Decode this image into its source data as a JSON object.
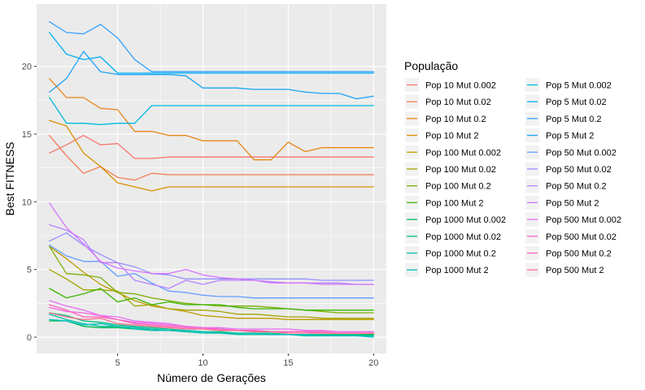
{
  "chart_data": {
    "type": "line",
    "title": "",
    "xlabel": "Número de Gerações",
    "ylabel": "Best FITNESS",
    "xlim": [
      0.25,
      20.75
    ],
    "ylim": [
      -1.2,
      24.6
    ],
    "x_ticks": [
      5,
      10,
      15,
      20
    ],
    "y_ticks": [
      0,
      5,
      10,
      15,
      20
    ],
    "grid": true,
    "legend_title": "População",
    "legend_position": "right",
    "x": [
      1,
      2,
      3,
      4,
      5,
      6,
      7,
      8,
      9,
      10,
      11,
      12,
      13,
      14,
      15,
      16,
      17,
      18,
      19,
      20
    ],
    "series": [
      {
        "name": "Pop 10 Mut 0.002",
        "color": "#F8766D",
        "values": [
          13.6,
          14.2,
          14.9,
          14.2,
          14.3,
          13.2,
          13.2,
          13.3,
          13.3,
          13.3,
          13.3,
          13.3,
          13.3,
          13.3,
          13.3,
          13.3,
          13.3,
          13.3,
          13.3,
          13.3
        ]
      },
      {
        "name": "Pop 10 Mut 0.02",
        "color": "#F27D52",
        "values": [
          14.9,
          13.4,
          12.1,
          12.6,
          11.8,
          11.6,
          12.1,
          12.0,
          12.0,
          12.0,
          12.0,
          12.0,
          12.0,
          12.0,
          12.0,
          12.0,
          12.0,
          12.0,
          12.0,
          12.0
        ]
      },
      {
        "name": "Pop 10 Mut 0.2",
        "color": "#E7861B",
        "values": [
          19.1,
          17.7,
          17.7,
          16.9,
          16.8,
          15.2,
          15.2,
          14.9,
          14.9,
          14.5,
          14.5,
          14.5,
          13.1,
          13.1,
          14.4,
          13.7,
          14.0,
          14.0,
          14.0,
          14.0
        ]
      },
      {
        "name": "Pop 10 Mut 2",
        "color": "#D89000",
        "values": [
          16.0,
          15.6,
          13.6,
          12.6,
          11.4,
          11.1,
          10.8,
          11.1,
          11.1,
          11.1,
          11.1,
          11.1,
          11.1,
          11.1,
          11.1,
          11.1,
          11.1,
          11.1,
          11.1,
          11.1
        ]
      },
      {
        "name": "Pop 100 Mut 0.002",
        "color": "#C09B00",
        "values": [
          6.7,
          5.8,
          4.8,
          3.9,
          3.3,
          2.7,
          2.3,
          2.1,
          1.9,
          1.6,
          1.5,
          1.4,
          1.4,
          1.4,
          1.3,
          1.3,
          1.3,
          1.3,
          1.3,
          1.3
        ]
      },
      {
        "name": "Pop 100 Mut 0.02",
        "color": "#A3A500",
        "values": [
          5.0,
          4.3,
          3.5,
          3.5,
          3.4,
          2.3,
          2.4,
          2.1,
          2.0,
          2.0,
          1.9,
          1.7,
          1.7,
          1.6,
          1.5,
          1.5,
          1.4,
          1.4,
          1.4,
          1.4
        ]
      },
      {
        "name": "Pop 100 Mut 0.2",
        "color": "#7CAE00",
        "values": [
          6.7,
          4.7,
          4.6,
          4.4,
          3.3,
          3.2,
          2.9,
          2.7,
          2.5,
          2.4,
          2.3,
          2.3,
          2.3,
          2.2,
          2.1,
          2.0,
          1.9,
          1.8,
          1.8,
          1.8
        ]
      },
      {
        "name": "Pop 100 Mut 2",
        "color": "#39B600",
        "values": [
          3.6,
          2.9,
          3.2,
          3.6,
          2.6,
          2.9,
          2.4,
          2.6,
          2.4,
          2.4,
          2.4,
          2.2,
          2.1,
          2.1,
          2.1,
          2.0,
          2.0,
          2.0,
          2.0,
          2.0
        ]
      },
      {
        "name": "Pop 1000 Mut 0.002",
        "color": "#00BB4E",
        "values": [
          1.2,
          1.2,
          0.8,
          0.7,
          0.7,
          0.6,
          0.6,
          0.5,
          0.5,
          0.4,
          0.3,
          0.3,
          0.3,
          0.2,
          0.2,
          0.2,
          0.2,
          0.2,
          0.2,
          0.2
        ]
      },
      {
        "name": "Pop 1000 Mut 0.02",
        "color": "#00BF7D",
        "values": [
          1.8,
          1.6,
          1.2,
          1.1,
          0.9,
          0.8,
          0.7,
          0.6,
          0.5,
          0.4,
          0.4,
          0.3,
          0.3,
          0.3,
          0.2,
          0.2,
          0.2,
          0.2,
          0.2,
          0.1
        ]
      },
      {
        "name": "Pop 1000 Mut 0.2",
        "color": "#00C1A3",
        "values": [
          1.7,
          1.3,
          1.0,
          0.8,
          0.8,
          0.6,
          0.5,
          0.5,
          0.4,
          0.3,
          0.3,
          0.2,
          0.2,
          0.2,
          0.2,
          0.1,
          0.1,
          0.1,
          0.1,
          0.1
        ]
      },
      {
        "name": "Pop 1000 Mut 2",
        "color": "#00BFC4",
        "values": [
          1.3,
          1.2,
          0.9,
          1.0,
          0.8,
          0.7,
          0.6,
          0.5,
          0.5,
          0.4,
          0.3,
          0.3,
          0.3,
          0.2,
          0.2,
          0.2,
          0.1,
          0.1,
          0.1,
          0.0
        ]
      },
      {
        "name": "Pop 5 Mut 0.002",
        "color": "#00BAE0",
        "values": [
          17.7,
          15.8,
          15.8,
          15.7,
          15.8,
          15.8,
          17.1,
          17.1,
          17.1,
          17.1,
          17.1,
          17.1,
          17.1,
          17.1,
          17.1,
          17.1,
          17.1,
          17.1,
          17.1,
          17.1
        ]
      },
      {
        "name": "Pop 5 Mut 0.02",
        "color": "#00B0F6",
        "values": [
          22.5,
          20.9,
          20.5,
          20.7,
          19.5,
          19.5,
          19.5,
          19.5,
          19.5,
          19.5,
          19.5,
          19.5,
          19.5,
          19.5,
          19.5,
          19.5,
          19.5,
          19.5,
          19.5,
          19.5
        ]
      },
      {
        "name": "Pop 5 Mut 0.2",
        "color": "#35A2FF",
        "values": [
          23.3,
          22.5,
          22.4,
          23.1,
          22.1,
          20.5,
          19.6,
          19.6,
          19.6,
          19.6,
          19.6,
          19.6,
          19.6,
          19.6,
          19.6,
          19.6,
          19.6,
          19.6,
          19.6,
          19.6
        ]
      },
      {
        "name": "Pop 5 Mut 2",
        "color": "#1AA4F5",
        "values": [
          18.1,
          19.1,
          21.1,
          19.6,
          19.4,
          19.4,
          19.4,
          19.4,
          19.3,
          18.4,
          18.4,
          18.4,
          18.3,
          18.3,
          18.3,
          18.1,
          18.0,
          18.0,
          17.6,
          17.8
        ]
      },
      {
        "name": "Pop 50 Mut 0.002",
        "color": "#619CFF",
        "values": [
          6.8,
          6.0,
          5.6,
          5.6,
          4.5,
          4.7,
          4.0,
          3.4,
          3.3,
          3.1,
          3.0,
          3.0,
          2.9,
          2.9,
          2.9,
          2.9,
          2.9,
          2.9,
          2.9,
          2.9
        ]
      },
      {
        "name": "Pop 50 Mut 0.02",
        "color": "#9590FF",
        "values": [
          7.1,
          7.7,
          6.8,
          6.1,
          5.5,
          5.2,
          4.7,
          4.6,
          4.3,
          4.3,
          4.3,
          4.3,
          4.3,
          4.3,
          4.3,
          4.3,
          4.2,
          4.2,
          4.2,
          4.2
        ]
      },
      {
        "name": "Pop 50 Mut 0.2",
        "color": "#B983FF",
        "values": [
          8.3,
          7.9,
          7.2,
          5.5,
          5.5,
          4.2,
          3.9,
          3.6,
          4.2,
          3.9,
          4.2,
          4.2,
          4.2,
          4.1,
          4.0,
          4.0,
          4.0,
          4.0,
          3.9,
          3.9
        ]
      },
      {
        "name": "Pop 50 Mut 2",
        "color": "#D575FE",
        "values": [
          9.9,
          8.1,
          6.9,
          5.6,
          5.1,
          4.9,
          4.7,
          4.7,
          5.0,
          4.6,
          4.4,
          4.3,
          4.2,
          4.0,
          4.0,
          4.0,
          3.9,
          3.9,
          3.9,
          3.9
        ]
      },
      {
        "name": "Pop 500 Mut 0.002",
        "color": "#E76BF3",
        "values": [
          2.7,
          2.3,
          2.0,
          1.6,
          1.5,
          1.2,
          1.1,
          1.0,
          0.8,
          0.7,
          0.7,
          0.6,
          0.6,
          0.6,
          0.6,
          0.5,
          0.5,
          0.4,
          0.4,
          0.4
        ]
      },
      {
        "name": "Pop 500 Mut 0.02",
        "color": "#F763E0",
        "values": [
          2.2,
          1.9,
          1.8,
          1.6,
          1.3,
          1.1,
          1.0,
          0.9,
          0.8,
          0.7,
          0.6,
          0.5,
          0.5,
          0.4,
          0.4,
          0.4,
          0.3,
          0.3,
          0.3,
          0.3
        ]
      },
      {
        "name": "Pop 500 Mut 0.2",
        "color": "#FF62BC",
        "values": [
          2.4,
          2.0,
          1.5,
          1.5,
          1.3,
          1.0,
          0.9,
          0.8,
          0.7,
          0.6,
          0.6,
          0.5,
          0.5,
          0.4,
          0.4,
          0.4,
          0.4,
          0.3,
          0.3,
          0.3
        ]
      },
      {
        "name": "Pop 500 Mut 2",
        "color": "#FF6C91",
        "values": [
          1.8,
          1.5,
          1.3,
          1.4,
          1.0,
          0.9,
          0.8,
          0.7,
          0.6,
          0.6,
          0.5,
          0.5,
          0.4,
          0.4,
          0.3,
          0.3,
          0.3,
          0.3,
          0.3,
          0.3
        ]
      }
    ]
  }
}
